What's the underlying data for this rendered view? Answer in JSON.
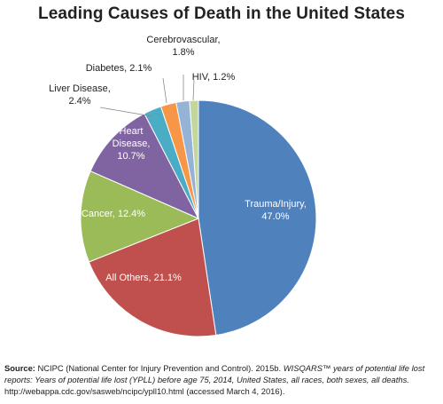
{
  "chart_data": {
    "type": "pie",
    "title": "Leading Causes of Death in the United States",
    "slices": [
      {
        "label": "Trauma/Injury, 47.0%",
        "lines": [
          "Trauma/Injury,",
          "47.0%"
        ],
        "value": 47.0,
        "color": "#4f81bd",
        "text_color": "#ffffff"
      },
      {
        "label": "All Others, 21.1%",
        "lines": [
          "All Others, 21.1%"
        ],
        "value": 21.1,
        "color": "#c0504d",
        "text_color": "#ffffff"
      },
      {
        "label": "Cancer, 12.4%",
        "lines": [
          "Cancer, 12.4%"
        ],
        "value": 12.4,
        "color": "#9bbb59",
        "text_color": "#ffffff"
      },
      {
        "label": "Heart Disease, 10.7%",
        "lines": [
          "Heart",
          "Disease,",
          "10.7%"
        ],
        "value": 10.7,
        "color": "#8064a2",
        "text_color": "#ffffff"
      },
      {
        "label": "Liver Disease, 2.4%",
        "lines": [
          "Liver Disease,",
          "2.4%"
        ],
        "value": 2.4,
        "color": "#4bacc6",
        "text_color": "#222222"
      },
      {
        "label": "Diabetes, 2.1%",
        "lines": [
          "Diabetes, 2.1%"
        ],
        "value": 2.1,
        "color": "#f79646",
        "text_color": "#222222"
      },
      {
        "label": "Cerebrovascular, 1.8%",
        "lines": [
          "Cerebrovascular,",
          "1.8%"
        ],
        "value": 1.8,
        "color": "#95b3d7",
        "text_color": "#222222"
      },
      {
        "label": "HIV, 1.2%",
        "lines": [
          "HIV, 1.2%"
        ],
        "value": 1.2,
        "color": "#c3d69b",
        "text_color": "#222222"
      }
    ],
    "start": "12 o'clock",
    "direction": "clockwise",
    "legend": "none"
  },
  "source": {
    "key": "Source:",
    "text_a": " NCIPC (National Center for Injury Prevention and Control). 2015b. ",
    "italic": "WISQARS™ years of potential life lost reports: Years of potential life lost (YPLL) before age 75, 2014, United States, all races, both sexes, all deaths.",
    "text_b": " http://webappa.cdc.gov/sasweb/ncipc/ypll10.html (accessed March 4, 2016)."
  }
}
